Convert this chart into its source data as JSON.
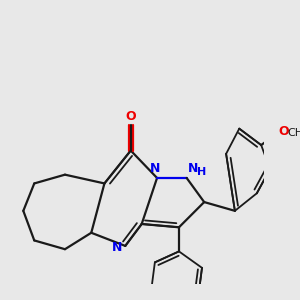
{
  "bg_color": "#e8e8e8",
  "bond_color": "#1a1a1a",
  "n_color": "#0000ee",
  "o_color": "#ee0000",
  "lw": 1.6,
  "lw_thin": 1.3,
  "figsize": [
    3.0,
    3.0
  ],
  "dpi": 100,
  "xlim": [
    30,
    270
  ],
  "ylim": [
    30,
    275
  ]
}
